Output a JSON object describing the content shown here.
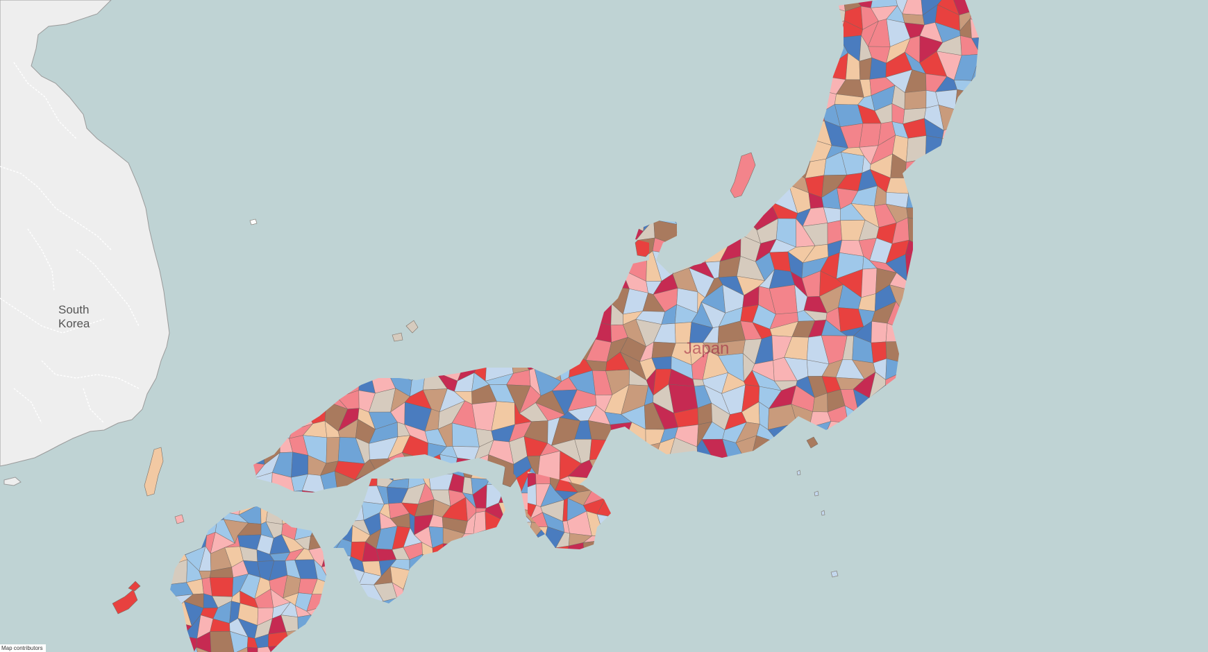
{
  "map": {
    "labels": {
      "korea": "South Korea",
      "japan": "Japan"
    },
    "attribution": "Map contributors",
    "palette": [
      "#c62a52",
      "#e8413f",
      "#f3848b",
      "#f9b3b4",
      "#f2c9a3",
      "#c99b7c",
      "#a97a5e",
      "#d6cbbe",
      "#c4d8ee",
      "#9fc8ea",
      "#6fa4d7",
      "#4a7cbf"
    ],
    "colors": {
      "sea": "#bfd3d4",
      "land_other": "#eeeeee"
    }
  }
}
